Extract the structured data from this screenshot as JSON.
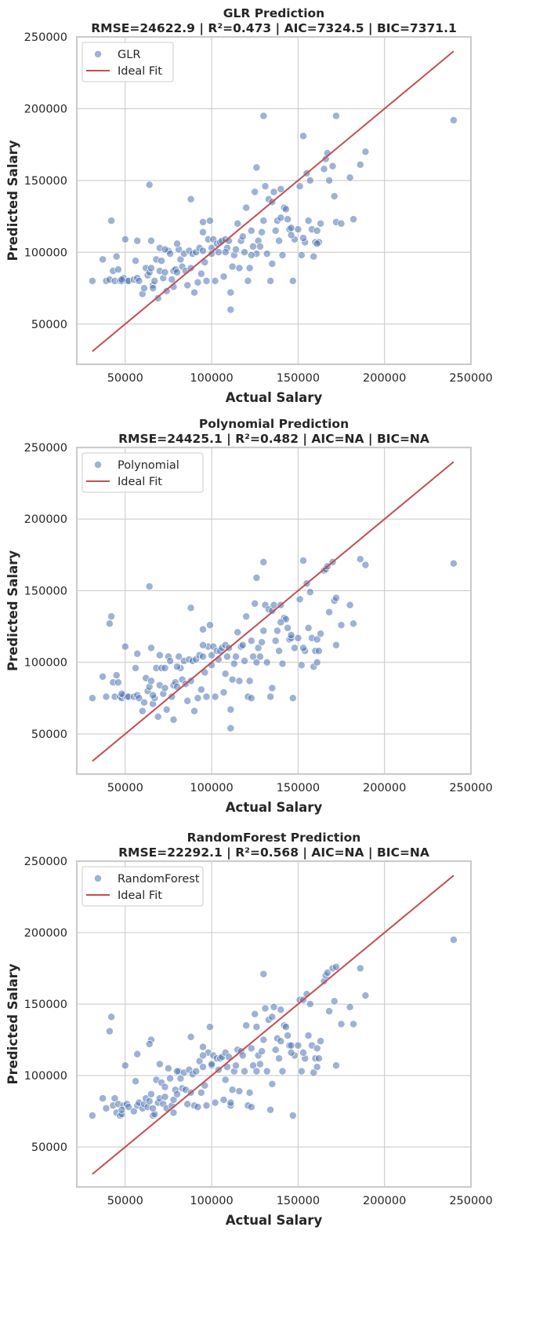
{
  "chart_data": [
    {
      "type": "scatter",
      "title": "GLR Prediction",
      "subtitle": "RMSE=24622.9 | R²=0.473 | AIC=7324.5 | BIC=7371.1",
      "xlabel": "Actual Salary",
      "ylabel": "Predicted Salary",
      "xlim": [
        22000,
        250000
      ],
      "ylim": [
        22000,
        250000
      ],
      "xticks": [
        50000,
        100000,
        150000,
        200000,
        250000
      ],
      "yticks": [
        50000,
        100000,
        150000,
        200000,
        250000
      ],
      "grid": true,
      "legend_position": "top-left",
      "legend": [
        "GLR",
        "Ideal Fit"
      ],
      "ideal_line": [
        [
          31000,
          31000
        ],
        [
          240000,
          240000
        ]
      ],
      "colors": {
        "points": "#4c72b0",
        "ideal": "#c44e52"
      },
      "x": [
        31000,
        37000,
        39000,
        41000,
        43000,
        44000,
        45000,
        46000,
        47000,
        48000,
        49000,
        50000,
        51000,
        52000,
        55000,
        56000,
        57000,
        58000,
        60000,
        61000,
        62000,
        63000,
        64000,
        65000,
        65000,
        66000,
        67000,
        68000,
        69000,
        70000,
        70000,
        71000,
        72000,
        73000,
        74000,
        75000,
        76000,
        77000,
        78000,
        79000,
        80000,
        81000,
        82000,
        83000,
        84000,
        85000,
        86000,
        87000,
        88000,
        89000,
        90000,
        91000,
        92000,
        93000,
        94000,
        95000,
        95000,
        96000,
        97000,
        98000,
        99000,
        100000,
        101000,
        102000,
        103000,
        104000,
        105000,
        106000,
        107000,
        108000,
        109000,
        110000,
        111000,
        112000,
        113000,
        114000,
        115000,
        116000,
        117000,
        118000,
        119000,
        120000,
        121000,
        122000,
        123000,
        124000,
        125000,
        126000,
        127000,
        128000,
        129000,
        130000,
        131000,
        132000,
        133000,
        134000,
        135000,
        136000,
        137000,
        138000,
        139000,
        140000,
        141000,
        142000,
        143000,
        144000,
        145000,
        146000,
        147000,
        148000,
        150000,
        151000,
        152000,
        153000,
        154000,
        155000,
        156000,
        157000,
        158000,
        159000,
        160000,
        161000,
        162000,
        163000,
        165000,
        166000,
        167000,
        168000,
        170000,
        171000,
        172000,
        175000,
        180000,
        182000,
        186000,
        189000,
        240000,
        42000,
        48000,
        64000,
        88000,
        130000,
        172000,
        153000,
        135000,
        126000,
        111000,
        73000,
        57000,
        80000,
        95000,
        108000,
        123000,
        140000,
        161000,
        146000,
        78000,
        66000,
        100000
      ],
      "y": [
        80000,
        95000,
        80000,
        81000,
        87000,
        80000,
        97000,
        88000,
        80000,
        80000,
        82000,
        109000,
        80000,
        80000,
        81000,
        94000,
        82000,
        80000,
        71000,
        75000,
        89000,
        84000,
        86000,
        89000,
        108000,
        77000,
        80000,
        95000,
        68000,
        87000,
        103000,
        94000,
        82000,
        86000,
        73000,
        101000,
        99000,
        81000,
        87000,
        88000,
        86000,
        102000,
        95000,
        90000,
        99000,
        87000,
        77000,
        101000,
        89000,
        99000,
        72000,
        100000,
        79000,
        103000,
        85000,
        101000,
        121000,
        93000,
        80000,
        109000,
        122000,
        103000,
        109000,
        80000,
        106000,
        100000,
        107000,
        108000,
        83000,
        109000,
        103000,
        108000,
        72000,
        90000,
        98000,
        102000,
        120000,
        89000,
        108000,
        111000,
        100000,
        131000,
        80000,
        89000,
        115000,
        104000,
        142000,
        99000,
        108000,
        104000,
        114000,
        122000,
        146000,
        99000,
        137000,
        80000,
        135000,
        142000,
        115000,
        122000,
        108000,
        144000,
        98000,
        131000,
        130000,
        123000,
        116000,
        117000,
        80000,
        109000,
        116000,
        146000,
        98000,
        181000,
        107000,
        155000,
        122000,
        150000,
        116000,
        97000,
        107000,
        115000,
        107000,
        120000,
        158000,
        165000,
        169000,
        150000,
        160000,
        139000,
        121000,
        120000,
        152000,
        123000,
        161000,
        170000,
        192000,
        122000,
        81000,
        147000,
        137000,
        195000,
        195000,
        110000,
        92000,
        159000,
        60000,
        102000,
        108000,
        106000,
        114000,
        100000,
        98000,
        124000,
        106000,
        112000,
        76000,
        75000,
        99000
      ],
      "axes": {
        "top": 47,
        "bottom": 464,
        "left": 98,
        "right": 601
      }
    },
    {
      "type": "scatter",
      "title": "Polynomial Prediction",
      "subtitle": "RMSE=24425.1 | R²=0.482 | AIC=NA | BIC=NA",
      "xlabel": "Actual Salary",
      "ylabel": "Predicted Salary",
      "xlim": [
        22000,
        250000
      ],
      "ylim": [
        22000,
        250000
      ],
      "xticks": [
        50000,
        100000,
        150000,
        200000,
        250000
      ],
      "yticks": [
        50000,
        100000,
        150000,
        200000,
        250000
      ],
      "grid": true,
      "legend_position": "top-left",
      "legend": [
        "Polynomial",
        "Ideal Fit"
      ],
      "ideal_line": [
        [
          31000,
          31000
        ],
        [
          240000,
          240000
        ]
      ],
      "colors": {
        "points": "#4c72b0",
        "ideal": "#c44e52"
      },
      "x": [
        31000,
        37000,
        39000,
        41000,
        43000,
        44000,
        45000,
        46000,
        47000,
        48000,
        49000,
        50000,
        51000,
        52000,
        55000,
        56000,
        57000,
        58000,
        60000,
        61000,
        62000,
        63000,
        64000,
        65000,
        65000,
        66000,
        67000,
        68000,
        69000,
        70000,
        70000,
        71000,
        72000,
        73000,
        74000,
        75000,
        76000,
        77000,
        78000,
        79000,
        80000,
        81000,
        82000,
        83000,
        84000,
        85000,
        86000,
        87000,
        88000,
        89000,
        90000,
        91000,
        92000,
        93000,
        94000,
        95000,
        95000,
        96000,
        97000,
        98000,
        99000,
        100000,
        101000,
        102000,
        103000,
        104000,
        105000,
        106000,
        107000,
        108000,
        109000,
        110000,
        111000,
        112000,
        113000,
        114000,
        115000,
        116000,
        117000,
        118000,
        119000,
        120000,
        121000,
        122000,
        123000,
        124000,
        125000,
        126000,
        127000,
        128000,
        129000,
        130000,
        131000,
        132000,
        133000,
        134000,
        135000,
        136000,
        137000,
        138000,
        139000,
        140000,
        141000,
        142000,
        143000,
        144000,
        145000,
        146000,
        147000,
        148000,
        150000,
        151000,
        152000,
        153000,
        154000,
        155000,
        156000,
        157000,
        158000,
        159000,
        160000,
        161000,
        162000,
        163000,
        165000,
        166000,
        167000,
        168000,
        170000,
        171000,
        172000,
        175000,
        180000,
        182000,
        186000,
        189000,
        240000,
        42000,
        48000,
        64000,
        88000,
        130000,
        172000,
        153000,
        135000,
        126000,
        111000,
        73000,
        57000,
        80000,
        95000,
        108000,
        123000,
        140000,
        161000,
        146000,
        78000,
        66000,
        100000
      ],
      "y": [
        75000,
        90000,
        76000,
        127000,
        86000,
        76000,
        91000,
        86000,
        76000,
        75000,
        77000,
        111000,
        76000,
        76000,
        76000,
        96000,
        77000,
        75000,
        66000,
        72000,
        89000,
        80000,
        83000,
        87000,
        110000,
        71000,
        75000,
        96000,
        62000,
        84000,
        105000,
        96000,
        78000,
        82000,
        67000,
        104000,
        101000,
        76000,
        84000,
        86000,
        83000,
        104000,
        96000,
        88000,
        101000,
        85000,
        73000,
        102000,
        87000,
        101000,
        66000,
        102000,
        75000,
        105000,
        81000,
        104000,
        123000,
        93000,
        76000,
        111000,
        126000,
        105000,
        111000,
        76000,
        108000,
        102000,
        108000,
        110000,
        79000,
        112000,
        104000,
        110000,
        67000,
        88000,
        99000,
        104000,
        121000,
        87000,
        111000,
        112000,
        101000,
        132000,
        76000,
        87000,
        115000,
        104000,
        141000,
        100000,
        110000,
        104000,
        114000,
        122000,
        140000,
        100000,
        137000,
        76000,
        136000,
        140000,
        115000,
        122000,
        108000,
        140000,
        99000,
        131000,
        130000,
        124000,
        116000,
        117000,
        75000,
        110000,
        117000,
        144000,
        98000,
        171000,
        108000,
        155000,
        124000,
        149000,
        117000,
        97000,
        108000,
        116000,
        108000,
        120000,
        164000,
        165000,
        167000,
        135000,
        170000,
        143000,
        112000,
        126000,
        140000,
        127000,
        172000,
        168000,
        169000,
        132000,
        78000,
        153000,
        138000,
        170000,
        145000,
        110000,
        82000,
        159000,
        54000,
        96000,
        106000,
        97000,
        112000,
        92000,
        75000,
        128000,
        100000,
        119000,
        60000,
        77000,
        98000
      ],
      "axes": {
        "top": 570,
        "bottom": 986,
        "left": 98,
        "right": 601
      }
    },
    {
      "type": "scatter",
      "title": "RandomForest Prediction",
      "subtitle": "RMSE=22292.1 | R²=0.568 | AIC=NA | BIC=NA",
      "xlabel": "Actual Salary",
      "ylabel": "Predicted Salary",
      "xlim": [
        22000,
        250000
      ],
      "ylim": [
        22000,
        250000
      ],
      "xticks": [
        50000,
        100000,
        150000,
        200000,
        250000
      ],
      "yticks": [
        50000,
        100000,
        150000,
        200000,
        250000
      ],
      "grid": true,
      "legend_position": "top-left",
      "legend": [
        "RandomForest",
        "Ideal Fit"
      ],
      "ideal_line": [
        [
          31000,
          31000
        ],
        [
          240000,
          240000
        ]
      ],
      "colors": {
        "points": "#4c72b0",
        "ideal": "#c44e52"
      },
      "x": [
        31000,
        37000,
        39000,
        41000,
        43000,
        44000,
        45000,
        46000,
        47000,
        48000,
        49000,
        50000,
        51000,
        52000,
        55000,
        56000,
        57000,
        58000,
        60000,
        61000,
        62000,
        63000,
        64000,
        65000,
        65000,
        66000,
        67000,
        68000,
        69000,
        70000,
        70000,
        71000,
        72000,
        73000,
        74000,
        75000,
        76000,
        77000,
        78000,
        79000,
        80000,
        81000,
        82000,
        83000,
        84000,
        85000,
        86000,
        87000,
        88000,
        89000,
        90000,
        91000,
        92000,
        93000,
        94000,
        95000,
        95000,
        96000,
        97000,
        98000,
        99000,
        100000,
        101000,
        102000,
        103000,
        104000,
        105000,
        106000,
        107000,
        108000,
        109000,
        110000,
        111000,
        112000,
        113000,
        114000,
        115000,
        116000,
        117000,
        118000,
        119000,
        120000,
        121000,
        122000,
        123000,
        124000,
        125000,
        126000,
        127000,
        128000,
        129000,
        130000,
        131000,
        132000,
        133000,
        134000,
        135000,
        136000,
        137000,
        138000,
        139000,
        140000,
        141000,
        142000,
        143000,
        144000,
        145000,
        146000,
        147000,
        148000,
        150000,
        151000,
        152000,
        153000,
        154000,
        155000,
        156000,
        157000,
        158000,
        159000,
        160000,
        161000,
        162000,
        163000,
        165000,
        166000,
        167000,
        168000,
        170000,
        171000,
        172000,
        175000,
        180000,
        182000,
        186000,
        189000,
        240000,
        42000,
        48000,
        64000,
        88000,
        130000,
        172000,
        153000,
        135000,
        126000,
        111000,
        73000,
        57000,
        80000,
        95000,
        108000,
        123000,
        140000,
        161000,
        146000,
        78000,
        66000,
        100000
      ],
      "y": [
        72000,
        84000,
        77000,
        131000,
        79000,
        84000,
        74000,
        80000,
        72000,
        73000,
        79000,
        107000,
        80000,
        78000,
        75000,
        96000,
        79000,
        81000,
        77000,
        80000,
        84000,
        78000,
        82000,
        87000,
        125000,
        72000,
        73000,
        97000,
        81000,
        84000,
        108000,
        95000,
        80000,
        85000,
        77000,
        105000,
        98000,
        79000,
        83000,
        90000,
        87000,
        103000,
        98000,
        91000,
        102000,
        90000,
        80000,
        104000,
        88000,
        101000,
        79000,
        103000,
        78000,
        110000,
        88000,
        106000,
        120000,
        93000,
        79000,
        116000,
        134000,
        107000,
        114000,
        81000,
        112000,
        104000,
        112000,
        113000,
        83000,
        116000,
        106000,
        113000,
        79000,
        90000,
        103000,
        107000,
        118000,
        89000,
        117000,
        114000,
        103000,
        135000,
        79000,
        88000,
        119000,
        107000,
        143000,
        103000,
        114000,
        108000,
        117000,
        125000,
        147000,
        103000,
        139000,
        76000,
        141000,
        148000,
        118000,
        126000,
        112000,
        146000,
        103000,
        135000,
        134000,
        128000,
        121000,
        121000,
        72000,
        114000,
        121000,
        153000,
        103000,
        153000,
        112000,
        157000,
        128000,
        150000,
        121000,
        102000,
        112000,
        119000,
        112000,
        124000,
        166000,
        170000,
        172000,
        145000,
        175000,
        152000,
        107000,
        136000,
        148000,
        136000,
        175000,
        156000,
        195000,
        141000,
        76000,
        122000,
        127000,
        171000,
        176000,
        116000,
        94000,
        134000,
        81000,
        92000,
        115000,
        103000,
        114000,
        97000,
        78000,
        124000,
        106000,
        116000,
        74000,
        77000,
        108000
      ],
      "axes": {
        "top": 1097,
        "bottom": 1512,
        "left": 98,
        "right": 601
      }
    }
  ]
}
